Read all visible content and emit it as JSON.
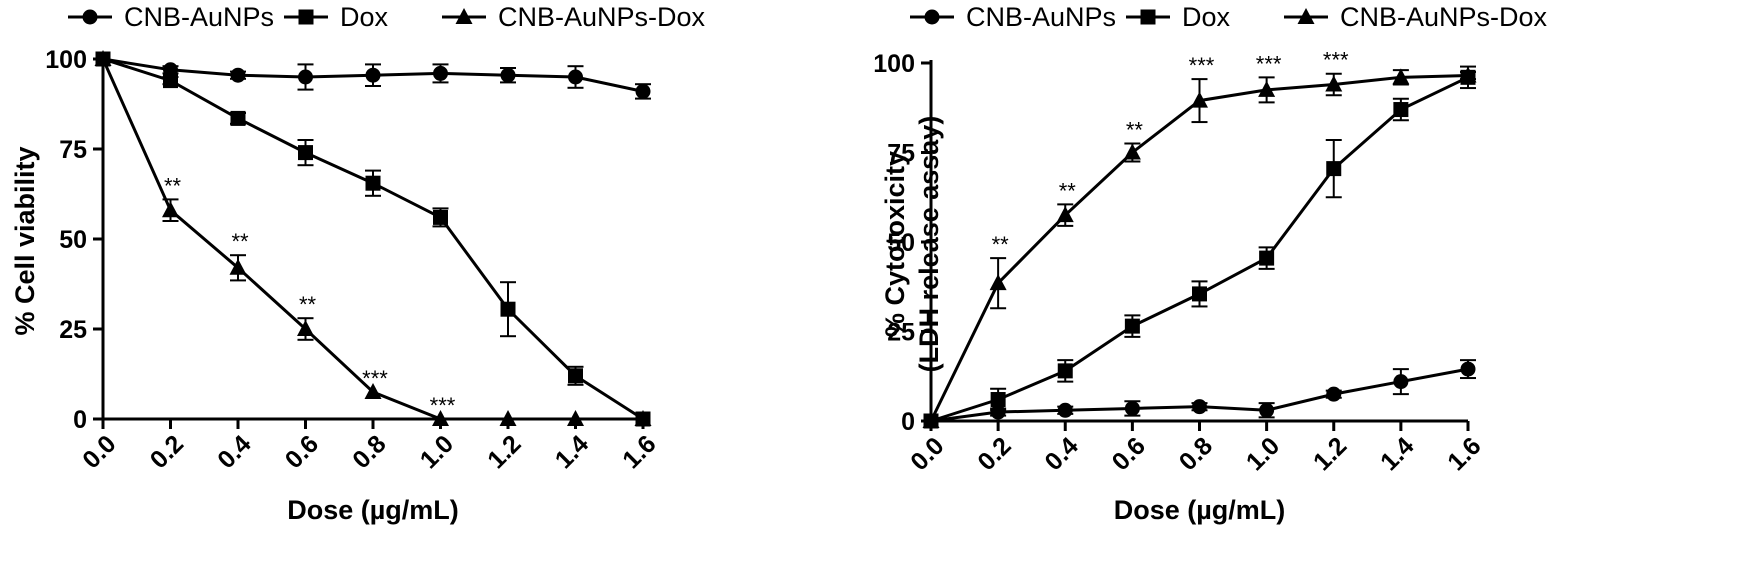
{
  "chart_data": [
    {
      "type": "line",
      "xlabel": "Dose (µg/mL)",
      "ylabel": "% Cell viability",
      "ylabel2": "",
      "x": [
        0.0,
        0.2,
        0.4,
        0.6,
        0.8,
        1.0,
        1.2,
        1.4,
        1.6
      ],
      "xtick_labels": [
        "0.0",
        "0.2",
        "0.4",
        "0.6",
        "0.8",
        "1.0",
        "1.2",
        "1.4",
        "1.6"
      ],
      "ytick_labels": [
        "0",
        "25",
        "50",
        "75",
        "100"
      ],
      "yticks": [
        0,
        25,
        50,
        75,
        100
      ],
      "xlim": [
        0,
        1.6
      ],
      "ylim": [
        0,
        100
      ],
      "legend_position": "top",
      "grid": false,
      "series": [
        {
          "name": "CNB-AuNPs",
          "marker": "circle",
          "values": [
            100,
            97,
            95.5,
            95,
            95.5,
            96,
            95.5,
            95,
            91
          ],
          "errors": [
            0,
            1,
            1,
            3.5,
            3,
            2.5,
            2,
            3,
            2
          ]
        },
        {
          "name": "Dox",
          "marker": "square",
          "values": [
            100,
            94,
            83.5,
            74,
            65.5,
            56,
            30.5,
            12,
            0
          ],
          "errors": [
            0,
            1,
            1.5,
            3.5,
            3.5,
            2.5,
            7.5,
            2.5,
            0
          ]
        },
        {
          "name": "CNB-AuNPs-Dox",
          "marker": "triangle",
          "values": [
            100,
            58,
            42,
            25,
            7.5,
            0,
            0,
            0,
            0
          ],
          "errors": [
            0,
            3,
            3.5,
            3,
            0,
            0,
            0,
            0,
            0
          ]
        }
      ],
      "annotations": [
        {
          "x": 0.2,
          "y": 58,
          "text": "**",
          "offset": 3
        },
        {
          "x": 0.4,
          "y": 42,
          "text": "**",
          "offset": 3.5
        },
        {
          "x": 0.6,
          "y": 25,
          "text": "**",
          "offset": 3
        },
        {
          "x": 0.8,
          "y": 7.5,
          "text": "***",
          "offset": 0
        },
        {
          "x": 1.0,
          "y": 0,
          "text": "***",
          "offset": 0
        }
      ]
    },
    {
      "type": "line",
      "xlabel": "Dose (µg/mL)",
      "ylabel": "% Cytotoxicity",
      "ylabel2": "(LDH release assay)",
      "x": [
        0.0,
        0.2,
        0.4,
        0.6,
        0.8,
        1.0,
        1.2,
        1.4,
        1.6
      ],
      "xtick_labels": [
        "0.0",
        "0.2",
        "0.4",
        "0.6",
        "0.8",
        "1.0",
        "1.2",
        "1.4",
        "1.6"
      ],
      "ytick_labels": [
        "0",
        "25",
        "50",
        "75",
        "100"
      ],
      "yticks": [
        0,
        25,
        50,
        75,
        100
      ],
      "xlim": [
        0,
        1.6
      ],
      "ylim": [
        0,
        100
      ],
      "legend_position": "top",
      "grid": false,
      "series": [
        {
          "name": "CNB-AuNPs",
          "marker": "circle",
          "values": [
            0,
            2.5,
            3,
            3.5,
            4,
            3,
            7.5,
            11,
            14.5
          ],
          "errors": [
            0,
            1,
            1,
            2,
            1,
            2,
            1,
            3.5,
            2.5
          ]
        },
        {
          "name": "Dox",
          "marker": "square",
          "values": [
            0,
            6,
            14,
            26.5,
            35.5,
            45.5,
            70.5,
            87,
            96
          ],
          "errors": [
            0,
            3,
            3,
            3,
            3.5,
            3,
            8,
            3,
            3
          ]
        },
        {
          "name": "CNB-AuNPs-Dox",
          "marker": "triangle",
          "values": [
            0,
            38.5,
            57.5,
            75,
            89.5,
            92.5,
            94,
            96,
            96.5
          ],
          "errors": [
            0,
            7,
            3,
            2.5,
            6,
            3.5,
            3,
            2,
            1
          ]
        }
      ],
      "annotations": [
        {
          "x": 0.2,
          "y": 38.5,
          "text": "**",
          "offset": 7
        },
        {
          "x": 0.4,
          "y": 57.5,
          "text": "**",
          "offset": 3
        },
        {
          "x": 0.6,
          "y": 75,
          "text": "**",
          "offset": 2.5
        },
        {
          "x": 0.8,
          "y": 89.5,
          "text": "***",
          "offset": 6
        },
        {
          "x": 1.0,
          "y": 92.5,
          "text": "***",
          "offset": 3.5
        },
        {
          "x": 1.2,
          "y": 94,
          "text": "***",
          "offset": 3
        }
      ]
    }
  ]
}
